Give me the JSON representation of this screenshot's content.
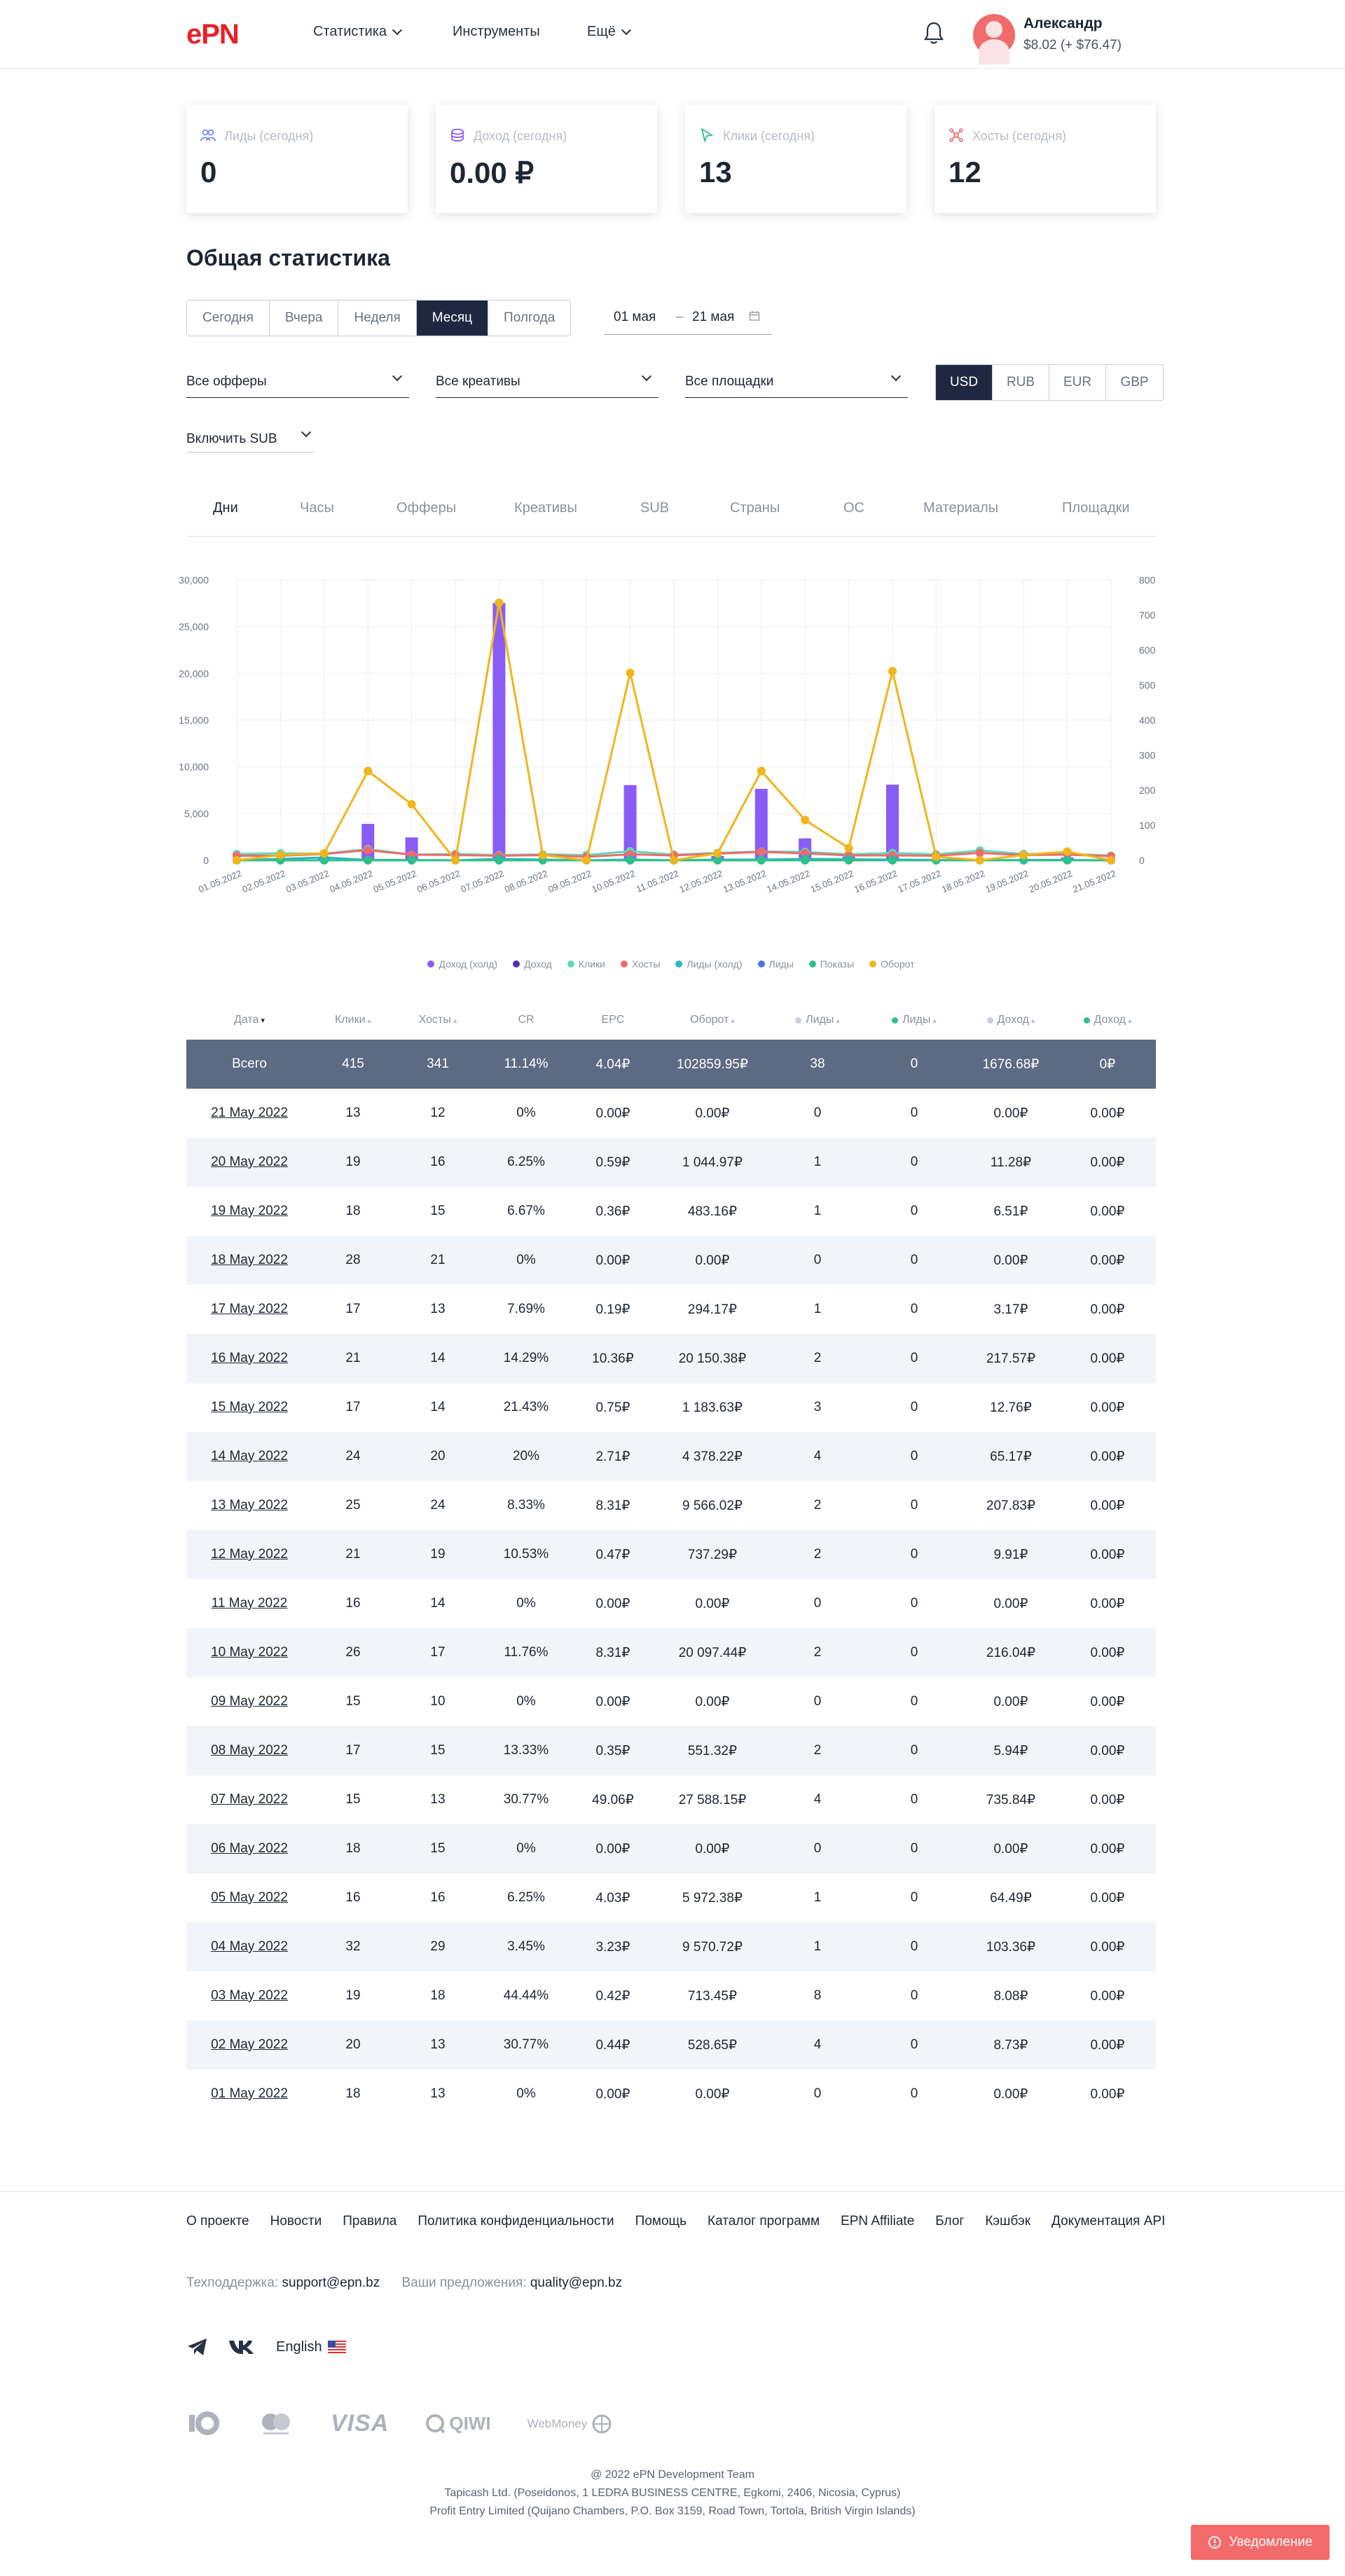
{
  "header": {
    "logo": "ePN",
    "nav": [
      {
        "label": "Статистика",
        "dropdown": true
      },
      {
        "label": "Инструменты",
        "dropdown": false
      },
      {
        "label": "Ещё",
        "dropdown": true
      }
    ],
    "user": {
      "name": "Александр",
      "balance": "$8.02 (+ $76.47)"
    }
  },
  "cards": [
    {
      "label": "Лиды (сегодня)",
      "value": "0",
      "icon": "people-icon",
      "color": "#6c8cf0"
    },
    {
      "label": "Доход (сегодня)",
      "value": "0.00 ₽",
      "icon": "coins-icon",
      "color": "#8a5cf6"
    },
    {
      "label": "Клики (сегодня)",
      "value": "13",
      "icon": "cursor-icon",
      "color": "#2fc08a"
    },
    {
      "label": "Хосты (сегодня)",
      "value": "12",
      "icon": "network-icon",
      "color": "#f06b6b"
    }
  ],
  "section_title": "Общая статистика",
  "period_tabs": [
    "Сегодня",
    "Вчера",
    "Неделя",
    "Месяц",
    "Полгода"
  ],
  "period_active": "Месяц",
  "date_range": {
    "from": "01 мая",
    "sep": "–",
    "to": "21 мая"
  },
  "filters": {
    "offers": "Все офферы",
    "creatives": "Все креативы",
    "platforms": "Все площадки",
    "sub": "Включить SUB"
  },
  "currencies": [
    "USD",
    "RUB",
    "EUR",
    "GBP"
  ],
  "currency_active": "USD",
  "stat_tabs": [
    "Дни",
    "Часы",
    "Офферы",
    "Креативы",
    "SUB",
    "Страны",
    "ОС",
    "Материалы",
    "Площадки"
  ],
  "stat_tab_active": "Дни",
  "chart_data": {
    "type": "bar",
    "categories": [
      "01.05.2022",
      "02.05.2022",
      "03.05.2022",
      "04.05.2022",
      "05.05.2022",
      "06.05.2022",
      "07.05.2022",
      "08.05.2022",
      "09.05.2022",
      "10.05.2022",
      "11.05.2022",
      "12.05.2022",
      "13.05.2022",
      "14.05.2022",
      "15.05.2022",
      "16.05.2022",
      "17.05.2022",
      "18.05.2022",
      "19.05.2022",
      "20.05.2022",
      "21.05.2022"
    ],
    "left_axis": {
      "ylim": [
        0,
        30000
      ],
      "ticks": [
        "0",
        "5,000",
        "10,000",
        "15,000",
        "20,000",
        "25,000",
        "30,000"
      ]
    },
    "right_axis": {
      "ylim": [
        0,
        800
      ],
      "ticks": [
        "0",
        "100",
        "200",
        "300",
        "400",
        "500",
        "600",
        "700",
        "800"
      ]
    },
    "series": [
      {
        "name": "Доход (холд)",
        "kind": "bar",
        "axis": "left",
        "color": "#8a5cf6",
        "values": [
          0,
          250,
          350,
          3900,
          2450,
          0,
          27550,
          0,
          0,
          8050,
          0,
          450,
          7650,
          2350,
          400,
          8100,
          0,
          0,
          0,
          300,
          0
        ]
      },
      {
        "name": "Доход",
        "kind": "bar",
        "axis": "left",
        "color": "#5b2fb0",
        "values": [
          0,
          0,
          0,
          0,
          0,
          0,
          0,
          0,
          0,
          0,
          0,
          0,
          0,
          0,
          0,
          0,
          0,
          0,
          0,
          0,
          0
        ]
      },
      {
        "name": "Клики",
        "kind": "line",
        "axis": "right",
        "color": "#5fd8b8",
        "values": [
          18,
          20,
          19,
          32,
          16,
          18,
          15,
          17,
          15,
          26,
          16,
          21,
          25,
          24,
          17,
          21,
          17,
          28,
          18,
          19,
          13
        ]
      },
      {
        "name": "Хосты",
        "kind": "line",
        "axis": "right",
        "color": "#f06b6b",
        "values": [
          13,
          13,
          18,
          29,
          16,
          15,
          13,
          15,
          10,
          17,
          14,
          19,
          24,
          20,
          14,
          14,
          13,
          21,
          15,
          16,
          12
        ]
      },
      {
        "name": "Лиды (холд)",
        "kind": "line",
        "axis": "right",
        "color": "#2bb5c8",
        "values": [
          0,
          4,
          8,
          1,
          1,
          0,
          4,
          2,
          0,
          2,
          0,
          2,
          2,
          4,
          3,
          2,
          1,
          0,
          1,
          1,
          0
        ]
      },
      {
        "name": "Лиды",
        "kind": "line",
        "axis": "right",
        "color": "#4a78e0",
        "values": [
          0,
          0,
          0,
          0,
          0,
          0,
          0,
          0,
          0,
          0,
          0,
          0,
          0,
          0,
          0,
          0,
          0,
          0,
          0,
          0,
          0
        ]
      },
      {
        "name": "Показы",
        "kind": "line",
        "axis": "right",
        "color": "#2fc08a",
        "values": [
          0,
          0,
          0,
          0,
          0,
          0,
          0,
          0,
          0,
          0,
          0,
          0,
          0,
          0,
          0,
          0,
          0,
          0,
          0,
          0,
          0
        ]
      },
      {
        "name": "Оборот",
        "kind": "line",
        "axis": "right",
        "color": "#f2b51a",
        "values": [
          0,
          15,
          20,
          255,
          160,
          0,
          735,
          15,
          0,
          535,
          0,
          20,
          255,
          115,
          35,
          540,
          10,
          0,
          15,
          25,
          0
        ]
      }
    ],
    "grid": true,
    "legend_position": "bottom"
  },
  "table": {
    "columns": [
      {
        "label": "Дата",
        "sort": "▾"
      },
      {
        "label": "Клики",
        "sort": "▴"
      },
      {
        "label": "Хосты",
        "sort": "▴"
      },
      {
        "label": "CR",
        "sort": ""
      },
      {
        "label": "EPC",
        "sort": ""
      },
      {
        "label": "Оборот",
        "sort": "▴"
      },
      {
        "label": "Лиды",
        "sort": "▴",
        "dot": "#c9cfda"
      },
      {
        "label": "Лиды",
        "sort": "▴",
        "dot": "#2fc08a"
      },
      {
        "label": "Доход",
        "sort": "▴",
        "dot": "#c9cfda"
      },
      {
        "label": "Доход",
        "sort": "▴",
        "dot": "#2fc08a"
      }
    ],
    "total": [
      "Всего",
      "415",
      "341",
      "11.14%",
      "4.04₽",
      "102859.95₽",
      "38",
      "0",
      "1676.68₽",
      "0₽"
    ],
    "rows": [
      [
        "21 May 2022",
        "13",
        "12",
        "0%",
        "0.00₽",
        "0.00₽",
        "0",
        "0",
        "0.00₽",
        "0.00₽"
      ],
      [
        "20 May 2022",
        "19",
        "16",
        "6.25%",
        "0.59₽",
        "1 044.97₽",
        "1",
        "0",
        "11.28₽",
        "0.00₽"
      ],
      [
        "19 May 2022",
        "18",
        "15",
        "6.67%",
        "0.36₽",
        "483.16₽",
        "1",
        "0",
        "6.51₽",
        "0.00₽"
      ],
      [
        "18 May 2022",
        "28",
        "21",
        "0%",
        "0.00₽",
        "0.00₽",
        "0",
        "0",
        "0.00₽",
        "0.00₽"
      ],
      [
        "17 May 2022",
        "17",
        "13",
        "7.69%",
        "0.19₽",
        "294.17₽",
        "1",
        "0",
        "3.17₽",
        "0.00₽"
      ],
      [
        "16 May 2022",
        "21",
        "14",
        "14.29%",
        "10.36₽",
        "20 150.38₽",
        "2",
        "0",
        "217.57₽",
        "0.00₽"
      ],
      [
        "15 May 2022",
        "17",
        "14",
        "21.43%",
        "0.75₽",
        "1 183.63₽",
        "3",
        "0",
        "12.76₽",
        "0.00₽"
      ],
      [
        "14 May 2022",
        "24",
        "20",
        "20%",
        "2.71₽",
        "4 378.22₽",
        "4",
        "0",
        "65.17₽",
        "0.00₽"
      ],
      [
        "13 May 2022",
        "25",
        "24",
        "8.33%",
        "8.31₽",
        "9 566.02₽",
        "2",
        "0",
        "207.83₽",
        "0.00₽"
      ],
      [
        "12 May 2022",
        "21",
        "19",
        "10.53%",
        "0.47₽",
        "737.29₽",
        "2",
        "0",
        "9.91₽",
        "0.00₽"
      ],
      [
        "11 May 2022",
        "16",
        "14",
        "0%",
        "0.00₽",
        "0.00₽",
        "0",
        "0",
        "0.00₽",
        "0.00₽"
      ],
      [
        "10 May 2022",
        "26",
        "17",
        "11.76%",
        "8.31₽",
        "20 097.44₽",
        "2",
        "0",
        "216.04₽",
        "0.00₽"
      ],
      [
        "09 May 2022",
        "15",
        "10",
        "0%",
        "0.00₽",
        "0.00₽",
        "0",
        "0",
        "0.00₽",
        "0.00₽"
      ],
      [
        "08 May 2022",
        "17",
        "15",
        "13.33%",
        "0.35₽",
        "551.32₽",
        "2",
        "0",
        "5.94₽",
        "0.00₽"
      ],
      [
        "07 May 2022",
        "15",
        "13",
        "30.77%",
        "49.06₽",
        "27 588.15₽",
        "4",
        "0",
        "735.84₽",
        "0.00₽"
      ],
      [
        "06 May 2022",
        "18",
        "15",
        "0%",
        "0.00₽",
        "0.00₽",
        "0",
        "0",
        "0.00₽",
        "0.00₽"
      ],
      [
        "05 May 2022",
        "16",
        "16",
        "6.25%",
        "4.03₽",
        "5 972.38₽",
        "1",
        "0",
        "64.49₽",
        "0.00₽"
      ],
      [
        "04 May 2022",
        "32",
        "29",
        "3.45%",
        "3.23₽",
        "9 570.72₽",
        "1",
        "0",
        "103.36₽",
        "0.00₽"
      ],
      [
        "03 May 2022",
        "19",
        "18",
        "44.44%",
        "0.42₽",
        "713.45₽",
        "8",
        "0",
        "8.08₽",
        "0.00₽"
      ],
      [
        "02 May 2022",
        "20",
        "13",
        "30.77%",
        "0.44₽",
        "528.65₽",
        "4",
        "0",
        "8.73₽",
        "0.00₽"
      ],
      [
        "01 May 2022",
        "18",
        "13",
        "0%",
        "0.00₽",
        "0.00₽",
        "0",
        "0",
        "0.00₽",
        "0.00₽"
      ]
    ]
  },
  "footer": {
    "links": [
      "О проекте",
      "Новости",
      "Правила",
      "Политика конфиденциальности",
      "Помощь",
      "Каталог программ",
      "EPN Affiliate",
      "Блог",
      "Кэшбэк",
      "Документация API"
    ],
    "support_label": "Техподдержка:",
    "support_email": "support@epn.bz",
    "suggest_label": "Ваши предложения:",
    "suggest_email": "quality@epn.bz",
    "language": "English",
    "payments": [
      "ЮMoney",
      "Mastercard",
      "VISA",
      "QIWI",
      "WebMoney"
    ],
    "copyright": [
      "@ 2022 ePN Development Team",
      "Tapicash Ltd. (Poseidonos, 1 LEDRA BUSINESS CENTRE, Egkomi, 2406, Nicosia, Cyprus)",
      "Profit Entry Limited (Quijano Chambers, P.O. Box 3159, Road Town, Tortola, British Virgin Islands)"
    ]
  },
  "notification_button": "Уведомление"
}
